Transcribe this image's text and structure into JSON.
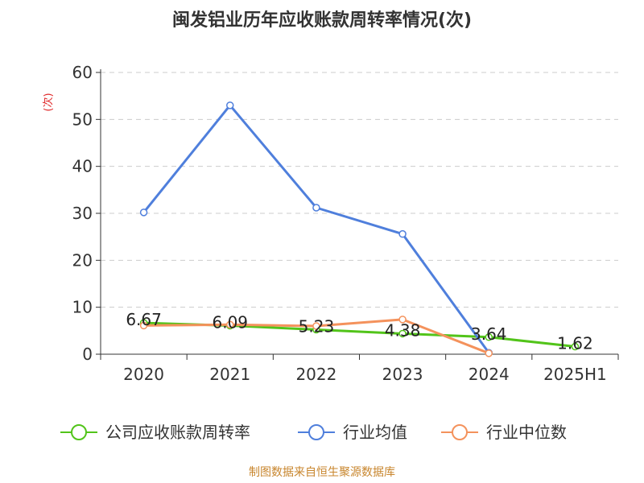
{
  "chart_data": {
    "type": "line",
    "title": "闽发铝业历年应收账款周转率情况(次)",
    "ylabel": "(次)",
    "ylim": [
      0,
      60
    ],
    "yticks": [
      0,
      10,
      20,
      30,
      40,
      50,
      60
    ],
    "grid": true,
    "legend_position": "bottom",
    "categories": [
      "2020",
      "2021",
      "2022",
      "2023",
      "2024",
      "2025H1"
    ],
    "series": [
      {
        "name": "公司应收账款周转率",
        "color": "#52c41a",
        "values": [
          6.67,
          6.09,
          5.23,
          4.38,
          3.64,
          1.62
        ],
        "labels": [
          "6.67",
          "6.09",
          "5.23",
          "4.38",
          "3.64",
          "1.62"
        ]
      },
      {
        "name": "行业均值",
        "color": "#4f7fdc",
        "values": [
          30.2,
          53.0,
          31.2,
          25.6,
          0.3,
          null
        ]
      },
      {
        "name": "行业中位数",
        "color": "#f4925c",
        "values": [
          6.1,
          6.3,
          6.0,
          7.4,
          0.2,
          null
        ]
      }
    ],
    "source": "制图数据来自恒生聚源数据库"
  }
}
